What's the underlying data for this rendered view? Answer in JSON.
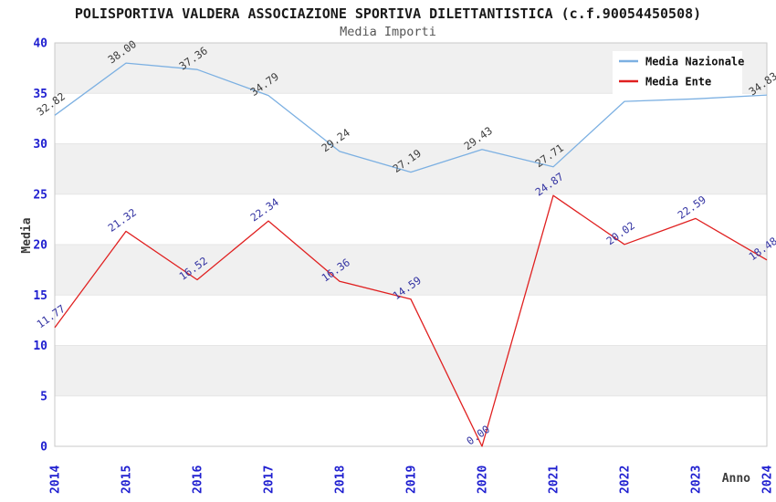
{
  "chart_data": {
    "type": "line",
    "title": "POLISPORTIVA VALDERA ASSOCIAZIONE SPORTIVA DILETTANTISTICA (c.f.90054450508)",
    "subtitle": "Media Importi",
    "xlabel": "Anno",
    "ylabel": "Media",
    "categories": [
      "2014",
      "2015",
      "2016",
      "2017",
      "2018",
      "2019",
      "2020",
      "2021",
      "2022",
      "2023",
      "2024"
    ],
    "ylim": [
      0,
      40
    ],
    "ytick_step": 5,
    "yticks": [
      0,
      5,
      10,
      15,
      20,
      25,
      30,
      35,
      40
    ],
    "grid": "alternating horizontal bands every 5 units, gray/white",
    "legend_position": "top-right",
    "series": [
      {
        "name": "Media Nazionale",
        "color": "#7cb0e2",
        "label_color": "#3c3c3c",
        "values": [
          32.82,
          38.0,
          37.36,
          34.79,
          29.24,
          27.19,
          29.43,
          27.71,
          34.2,
          34.45,
          34.83
        ],
        "labels": [
          "32.82",
          "38.00",
          "37.36",
          "34.79",
          "29.24",
          "27.19",
          "29.43",
          "27.71",
          null,
          null,
          "34.83"
        ],
        "note": "2022 and 2023 point labels are hidden behind the legend box; their values are estimated from the line position"
      },
      {
        "name": "Media Ente",
        "color": "#e02020",
        "label_color": "#3333a2",
        "values": [
          11.77,
          21.32,
          16.52,
          22.34,
          16.36,
          14.59,
          0.0,
          24.87,
          20.02,
          22.59,
          18.48
        ],
        "labels": [
          "11.77",
          "21.32",
          "16.52",
          "22.34",
          "16.36",
          "14.59",
          "0.00",
          "24.87",
          "20.02",
          "22.59",
          "18.48"
        ],
        "note": ""
      }
    ],
    "colors": {
      "band_gray": "#f0f0f0",
      "band_white": "#ffffff",
      "gridline": "#e6e6e6",
      "border": "#c9c9c9",
      "tick_label": "#2020d0",
      "title": "#1a1a1a",
      "subtitle": "#555555",
      "axis_title": "#3c3c3c",
      "legend_text": "#111111",
      "legend_bg": "#ffffff"
    }
  }
}
